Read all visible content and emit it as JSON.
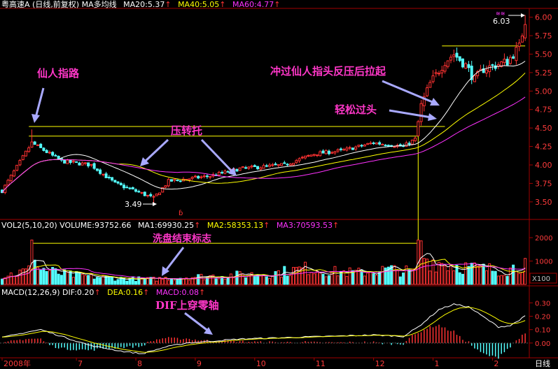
{
  "header": {
    "title": "粤高速A (日线,前复权) MA多均线",
    "ma20": "MA20:5.37",
    "ma40": "MA40:5.05",
    "ma60": "MA60:4.77",
    "arrow_glyph": "↑"
  },
  "volume_header": {
    "title": "VOL2(5,10,20) VOLUME:93752.66",
    "ma1": "MA1:69930.25",
    "ma2": "MA2:58353.13",
    "ma3": "MA3:70593.53"
  },
  "macd_header": {
    "title": "MACD(12,26,9) DIF:0.20",
    "dea": "DEA:0.16",
    "macd": "MACD:0.08"
  },
  "annotations": {
    "finger_road": "仙人指路",
    "pressure_to_support": "压转托",
    "breakout_rise": "冲过仙人指头反压后拉起",
    "easy_pass": "轻松过头",
    "washout_end": "洗盘结束标志",
    "dif_cross_zero": "DIF上穿零轴",
    "low_label": "3.49",
    "high_label": "6.03",
    "marker_glyph": "ɓ"
  },
  "volume_unit": "X100",
  "period_label": "日线",
  "colors": {
    "up": "#ff3232",
    "down": "#54ffff",
    "ma20": "#ffffff",
    "ma40": "#ffff00",
    "ma60": "#ff32ff",
    "axis": "#a00000",
    "annotation": "#ff37c8",
    "arrow": "#a9a9ff"
  },
  "chart_data": {
    "type": "candlestick",
    "price_axis": {
      "ticks": [
        3.5,
        3.75,
        4.0,
        4.25,
        4.5,
        4.75,
        5.0,
        5.25,
        5.5,
        5.75,
        6.0
      ],
      "tick_labels": [
        "3.50",
        "3.75",
        "4.00",
        "4.25",
        "4.50",
        "4.75",
        "5.00",
        "5.25",
        "5.50",
        "5.75",
        "6.00"
      ],
      "range": [
        3.3,
        6.1
      ]
    },
    "volume_axis": {
      "ticks": [
        1000,
        2000
      ],
      "tick_labels": [
        "1000",
        "2000"
      ],
      "range": [
        0,
        2300
      ],
      "unit": "X100"
    },
    "macd_axis": {
      "ticks": [
        0.0,
        0.1,
        0.2,
        0.3
      ],
      "tick_labels": [
        "0.00",
        "0.10",
        "0.20",
        "0.30"
      ],
      "range": [
        -0.1,
        0.38
      ]
    },
    "x_axis": {
      "labels": [
        "2008年",
        "7",
        "8",
        "9",
        "10",
        "11",
        "12",
        "1",
        "2"
      ],
      "label_bars": [
        0,
        25,
        45,
        65,
        85,
        105,
        125,
        145,
        165
      ]
    },
    "key_points": [
      {
        "bar": 10,
        "high": 4.48,
        "note": "仙人指路"
      },
      {
        "bar": 51,
        "low": 3.49
      },
      {
        "bar": 176,
        "high": 6.03
      }
    ],
    "levels": [
      {
        "value": 4.52,
        "from_bar": 9,
        "to_bar": 149
      },
      {
        "value": 4.39,
        "from_bar": 9,
        "to_bar": 140
      },
      {
        "value": 5.61,
        "from_bar": 148,
        "to_bar": 176
      }
    ],
    "volume_level": {
      "value": 1760,
      "from_bar": 10,
      "to_bar": 140
    },
    "price_knots": [
      [
        0,
        3.65
      ],
      [
        10,
        4.3
      ],
      [
        20,
        4.05
      ],
      [
        30,
        4.0
      ],
      [
        38,
        3.75
      ],
      [
        46,
        3.63
      ],
      [
        51,
        3.55
      ],
      [
        56,
        3.78
      ],
      [
        70,
        3.85
      ],
      [
        80,
        3.95
      ],
      [
        95,
        4.0
      ],
      [
        105,
        4.15
      ],
      [
        115,
        4.2
      ],
      [
        125,
        4.3
      ],
      [
        135,
        4.25
      ],
      [
        139,
        4.35
      ],
      [
        141,
        4.8
      ],
      [
        144,
        5.1
      ],
      [
        149,
        5.4
      ],
      [
        152,
        5.5
      ],
      [
        156,
        5.35
      ],
      [
        159,
        5.15
      ],
      [
        162,
        5.3
      ],
      [
        170,
        5.4
      ],
      [
        174,
        5.6
      ],
      [
        176,
        5.95
      ]
    ],
    "volume_knots": [
      [
        0,
        350
      ],
      [
        9,
        600
      ],
      [
        10,
        1900
      ],
      [
        12,
        700
      ],
      [
        20,
        450
      ],
      [
        30,
        330
      ],
      [
        40,
        250
      ],
      [
        50,
        220
      ],
      [
        60,
        300
      ],
      [
        75,
        380
      ],
      [
        90,
        460
      ],
      [
        103,
        700
      ],
      [
        110,
        550
      ],
      [
        120,
        500
      ],
      [
        130,
        640
      ],
      [
        139,
        520
      ],
      [
        140,
        1900
      ],
      [
        141,
        1500
      ],
      [
        143,
        1050
      ],
      [
        150,
        850
      ],
      [
        160,
        680
      ],
      [
        170,
        600
      ],
      [
        176,
        950
      ]
    ],
    "macd_knots": [
      [
        0,
        0.04
      ],
      [
        8,
        0.08
      ],
      [
        13,
        0.1
      ],
      [
        20,
        0.05
      ],
      [
        30,
        -0.02
      ],
      [
        40,
        -0.06
      ],
      [
        47,
        -0.08
      ],
      [
        55,
        -0.03
      ],
      [
        62,
        0.0
      ],
      [
        68,
        0.01
      ],
      [
        80,
        0.03
      ],
      [
        95,
        0.04
      ],
      [
        110,
        0.05
      ],
      [
        125,
        0.06
      ],
      [
        135,
        0.05
      ],
      [
        140,
        0.12
      ],
      [
        147,
        0.25
      ],
      [
        152,
        0.29
      ],
      [
        157,
        0.27
      ],
      [
        163,
        0.18
      ],
      [
        167,
        0.12
      ],
      [
        171,
        0.13
      ],
      [
        176,
        0.2
      ]
    ]
  }
}
